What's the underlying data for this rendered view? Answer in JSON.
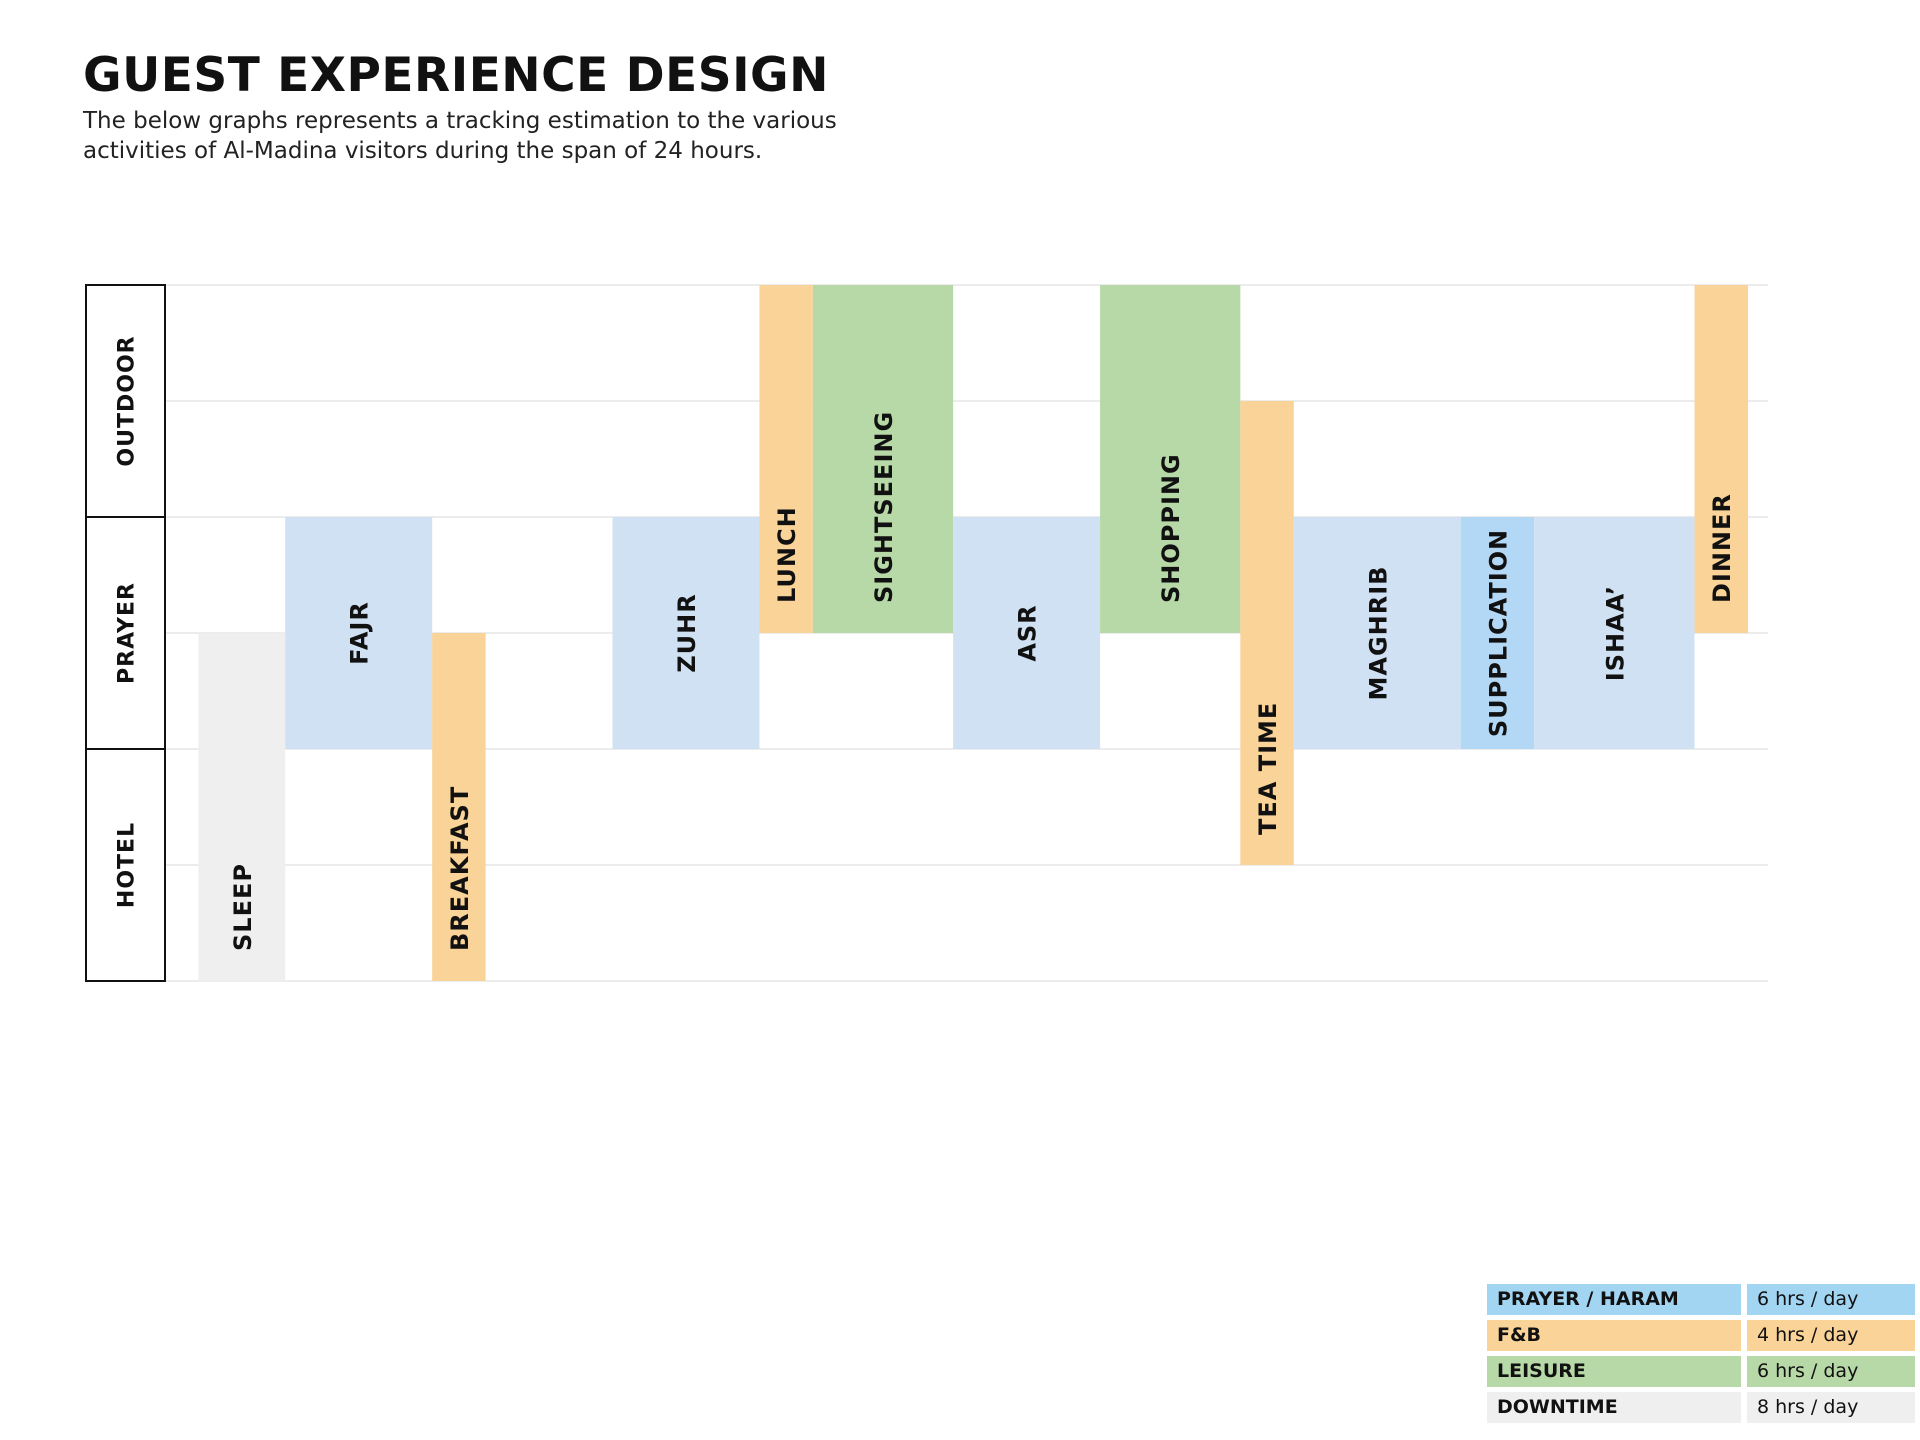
{
  "header": {
    "title": "GUEST EXPERIENCE DESIGN",
    "subtitle": "The below graphs represents a tracking estimation to the various activities of Al-Madina visitors during the span of 24 hours."
  },
  "colors": {
    "prayer_haram": "#cfe1f3",
    "supplication": "#b3d8f5",
    "fnb": "#f9d397",
    "leisure": "#b7d8a7",
    "downtime": "#efefef",
    "legend_prayer": "#a2d5f2"
  },
  "chart_data": {
    "type": "timeline",
    "title": "GUEST EXPERIENCE DESIGN",
    "x_unit": "relative time (0-24 span)",
    "xlim": [
      0,
      24
    ],
    "ylim": [
      0,
      6
    ],
    "y_categories": [
      {
        "label": "HOTEL",
        "range": [
          0,
          2
        ]
      },
      {
        "label": "PRAYER",
        "range": [
          2,
          4
        ]
      },
      {
        "label": "OUTDOOR",
        "range": [
          4,
          6
        ]
      }
    ],
    "activities": [
      {
        "label": "SLEEP",
        "group": "downtime",
        "x0": 0.5,
        "x1": 1.8,
        "y0": 0,
        "y1": 3
      },
      {
        "label": "FAJR",
        "group": "prayer_haram",
        "x0": 1.8,
        "x1": 4.0,
        "y0": 2,
        "y1": 4
      },
      {
        "label": "BREAKFAST",
        "group": "fnb",
        "x0": 4.0,
        "x1": 4.8,
        "y0": 0,
        "y1": 3
      },
      {
        "label": "ZUHR",
        "group": "prayer_haram",
        "x0": 6.7,
        "x1": 8.9,
        "y0": 2,
        "y1": 4
      },
      {
        "label": "LUNCH",
        "group": "fnb",
        "x0": 8.9,
        "x1": 9.7,
        "y0": 3,
        "y1": 6
      },
      {
        "label": "SIGHTSEEING",
        "group": "leisure",
        "x0": 9.7,
        "x1": 11.8,
        "y0": 3,
        "y1": 6
      },
      {
        "label": "ASR",
        "group": "prayer_haram",
        "x0": 11.8,
        "x1": 14.0,
        "y0": 2,
        "y1": 4
      },
      {
        "label": "SHOPPING",
        "group": "leisure",
        "x0": 14.0,
        "x1": 16.1,
        "y0": 3,
        "y1": 6
      },
      {
        "label": "TEA TIME",
        "group": "fnb",
        "x0": 16.1,
        "x1": 16.9,
        "y0": 1,
        "y1": 5
      },
      {
        "label": "MAGHRIB",
        "group": "prayer_haram",
        "x0": 16.9,
        "x1": 19.4,
        "y0": 2,
        "y1": 4
      },
      {
        "label": "SUPPLICATION",
        "group": "supplication",
        "x0": 19.4,
        "x1": 20.5,
        "y0": 2,
        "y1": 4
      },
      {
        "label": "ISHAA’",
        "group": "prayer_haram",
        "x0": 20.5,
        "x1": 22.9,
        "y0": 2,
        "y1": 4
      },
      {
        "label": "DINNER",
        "group": "fnb",
        "x0": 22.9,
        "x1": 23.7,
        "y0": 3,
        "y1": 6
      }
    ],
    "legend": [
      {
        "name": "PRAYER / HARAM",
        "value": "6 hrs / day",
        "group": "legend_prayer"
      },
      {
        "name": "F&B",
        "value": "4 hrs / day",
        "group": "fnb"
      },
      {
        "name": "LEISURE",
        "value": "6 hrs / day",
        "group": "leisure"
      },
      {
        "name": "DOWNTIME",
        "value": "8 hrs / day",
        "group": "downtime"
      }
    ]
  }
}
